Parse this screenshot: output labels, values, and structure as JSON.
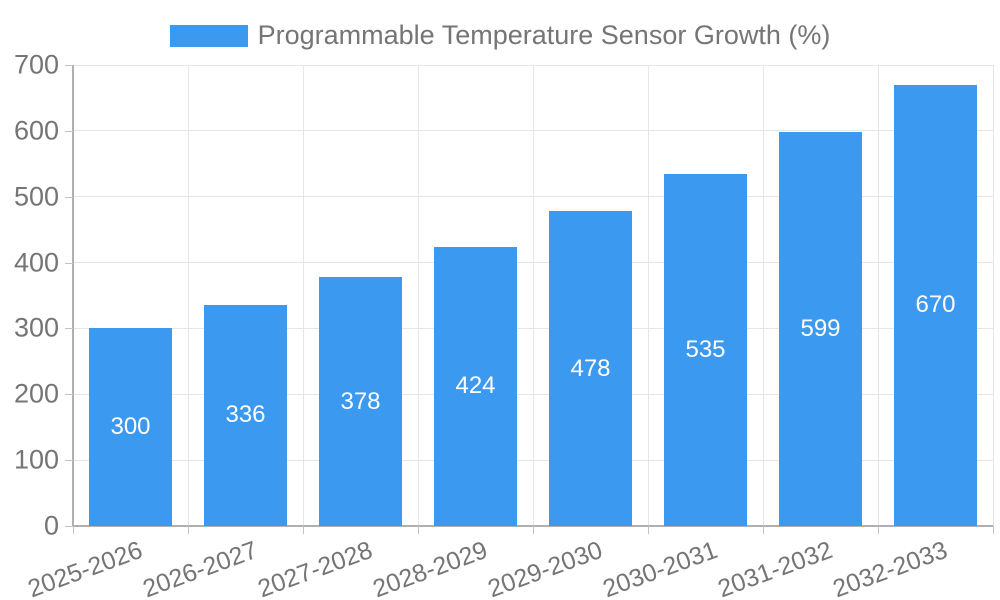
{
  "chart_data": {
    "type": "bar",
    "title": "Programmable Temperature Sensor Growth (%)",
    "categories": [
      "2025-2026",
      "2026-2027",
      "2027-2028",
      "2028-2029",
      "2029-2030",
      "2030-2031",
      "2031-2032",
      "2032-2033"
    ],
    "values": [
      300,
      336,
      378,
      424,
      478,
      535,
      599,
      670
    ],
    "xlabel": "",
    "ylabel": "",
    "ylim": [
      0,
      700
    ],
    "ytick_step": 100,
    "ytick_labels": [
      "0",
      "100",
      "200",
      "300",
      "400",
      "500",
      "600",
      "700"
    ],
    "grid": true,
    "legend_position": "top-center",
    "value_labels_inside_bars": true,
    "colors": {
      "bar": "#3b99f0",
      "value_label": "#ffffff",
      "axis": "#b0b0b0",
      "tick_mark": "#c2c2c2",
      "grid": "#e6e6e6",
      "tick_label": "#757575",
      "legend_text": "#757575",
      "background": "#ffffff"
    }
  }
}
